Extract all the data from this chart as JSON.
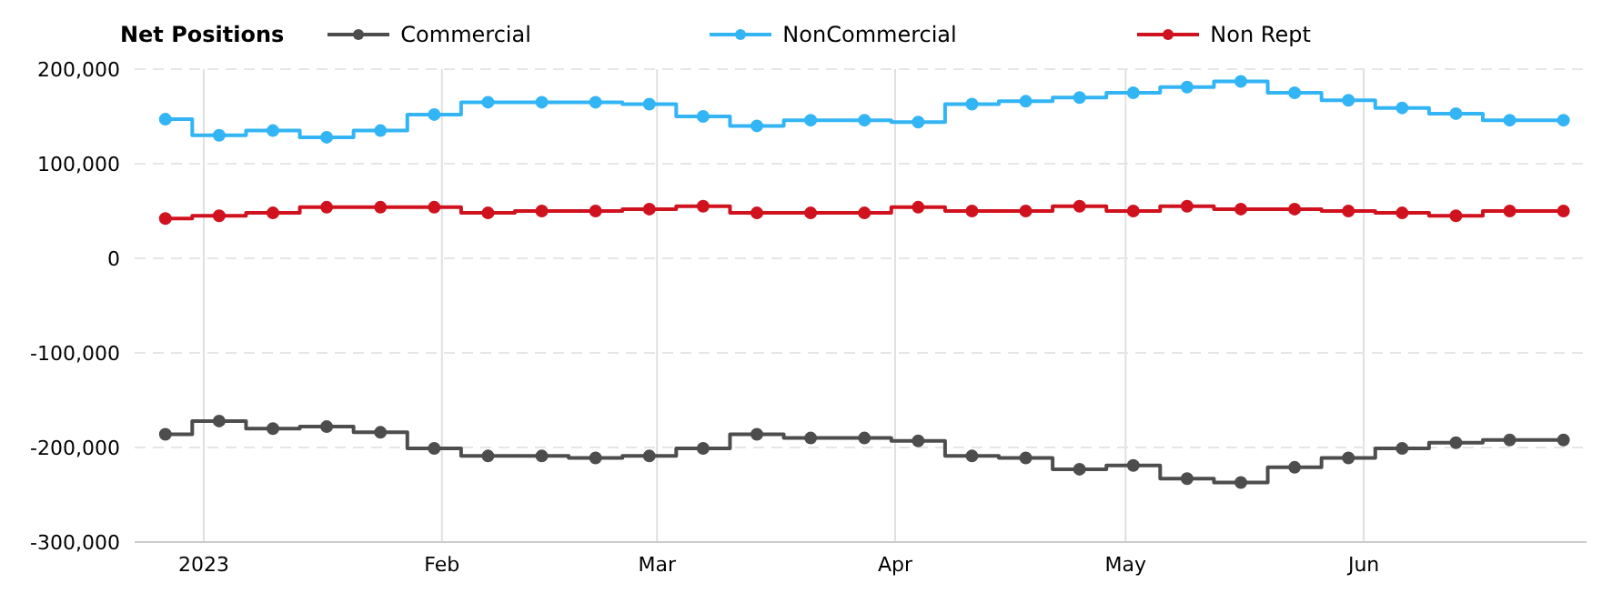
{
  "chart_data": {
    "type": "step",
    "legend_title": "Net Positions",
    "x": [
      "2022-12-27",
      "2023-01-03",
      "2023-01-10",
      "2023-01-17",
      "2023-01-24",
      "2023-01-31",
      "2023-02-07",
      "2023-02-14",
      "2023-02-21",
      "2023-02-28",
      "2023-03-07",
      "2023-03-14",
      "2023-03-21",
      "2023-03-28",
      "2023-04-04",
      "2023-04-11",
      "2023-04-18",
      "2023-04-25",
      "2023-05-02",
      "2023-05-09",
      "2023-05-16",
      "2023-05-23",
      "2023-05-30",
      "2023-06-06",
      "2023-06-13",
      "2023-06-20",
      "2023-06-27"
    ],
    "series": [
      {
        "name": "Commercial",
        "color": "#4d4d4d",
        "values": [
          -186000,
          -172000,
          -180000,
          -178000,
          -184000,
          -201000,
          -209000,
          -209000,
          -211000,
          -209000,
          -201000,
          -186000,
          -190000,
          -190000,
          -193000,
          -209000,
          -211000,
          -223000,
          -219000,
          -233000,
          -237000,
          -221000,
          -211000,
          -201000,
          -195000,
          -192000,
          -192000
        ]
      },
      {
        "name": "NonCommercial",
        "color": "#33b5f5",
        "values": [
          147000,
          130000,
          135000,
          128000,
          135000,
          152000,
          165000,
          165000,
          165000,
          163000,
          150000,
          140000,
          146000,
          146000,
          144000,
          163000,
          166000,
          170000,
          175000,
          181000,
          187000,
          175000,
          167000,
          159000,
          153000,
          146000,
          146000
        ]
      },
      {
        "name": "Non Rept",
        "color": "#d0121f",
        "values": [
          42000,
          45000,
          48000,
          54000,
          54000,
          54000,
          48000,
          50000,
          50000,
          52000,
          55000,
          48000,
          48000,
          48000,
          54000,
          50000,
          50000,
          55000,
          50000,
          55000,
          52000,
          52000,
          50000,
          48000,
          45000,
          50000,
          50000
        ]
      }
    ],
    "xlim": [
      "2022-12-23",
      "2023-06-30"
    ],
    "xticks": [
      {
        "value": "2023-01-01",
        "label": "2023"
      },
      {
        "value": "2023-02-01",
        "label": "Feb"
      },
      {
        "value": "2023-03-01",
        "label": "Mar"
      },
      {
        "value": "2023-04-01",
        "label": "Apr"
      },
      {
        "value": "2023-05-01",
        "label": "May"
      },
      {
        "value": "2023-06-01",
        "label": "Jun"
      }
    ],
    "ylim": [
      -300000,
      200000
    ],
    "yticks": [
      {
        "value": -300000,
        "label": "-300,000"
      },
      {
        "value": -200000,
        "label": "-200,000"
      },
      {
        "value": -100000,
        "label": "-100,000"
      },
      0,
      {
        "value": 100000,
        "label": "100,000"
      },
      {
        "value": 200000,
        "label": "200,000"
      }
    ],
    "grid": true,
    "legend": "top",
    "marker": "circle",
    "line_style": "solid"
  }
}
